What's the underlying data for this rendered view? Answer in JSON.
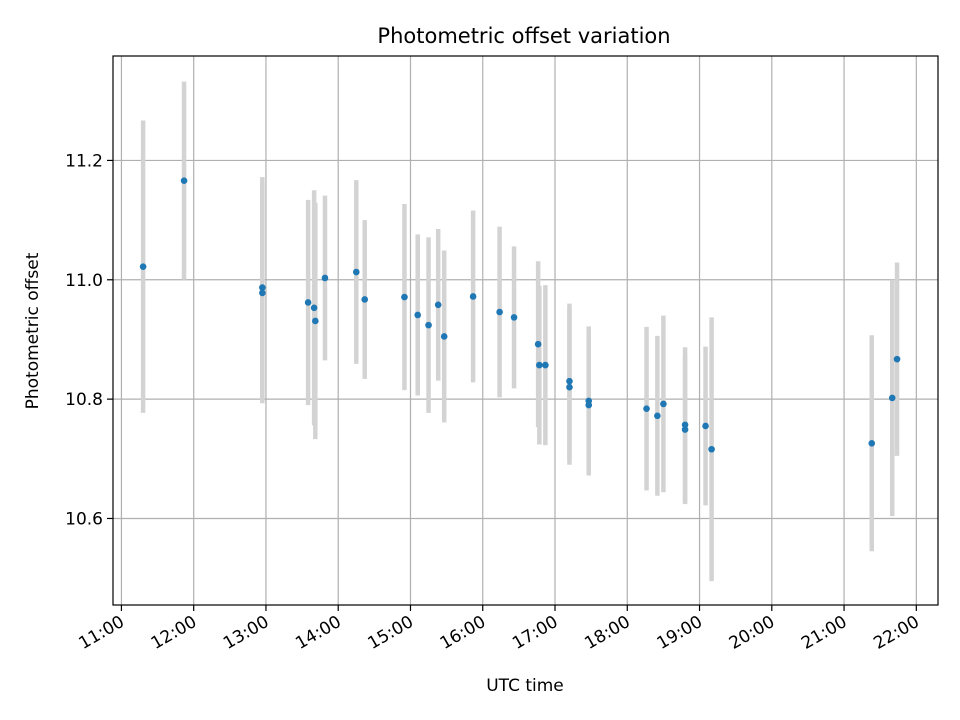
{
  "chart_data": {
    "type": "scatter",
    "title": "Photometric offset variation",
    "xlabel": "UTC time",
    "ylabel": "Photometric offset",
    "xlim": [
      "10:53",
      "22:18"
    ],
    "ylim": [
      10.455,
      11.375
    ],
    "x_ticks": [
      "11:00",
      "12:00",
      "13:00",
      "14:00",
      "15:00",
      "16:00",
      "17:00",
      "18:00",
      "19:00",
      "20:00",
      "21:00",
      "22:00"
    ],
    "y_ticks": [
      10.6,
      10.8,
      11.0,
      11.2
    ],
    "y_tick_labels": [
      "10.6",
      "10.8",
      "11.0",
      "11.2"
    ],
    "grid": true,
    "colors": {
      "point": "#1f77b4",
      "errorbar": "#d3d3d3",
      "grid": "#b0b0b0"
    },
    "points": [
      {
        "x": "11:18",
        "y": 11.022,
        "err": 0.245
      },
      {
        "x": "11:52",
        "y": 11.166,
        "err": 0.166
      },
      {
        "x": "12:57",
        "y": 10.987,
        "err": 0.185
      },
      {
        "x": "12:57",
        "y": 10.978,
        "err": 0.185
      },
      {
        "x": "13:35",
        "y": 10.962,
        "err": 0.172
      },
      {
        "x": "13:40",
        "y": 10.953,
        "err": 0.197
      },
      {
        "x": "13:41",
        "y": 10.931,
        "err": 0.198
      },
      {
        "x": "13:49",
        "y": 11.003,
        "err": 0.138
      },
      {
        "x": "14:15",
        "y": 11.013,
        "err": 0.154
      },
      {
        "x": "14:22",
        "y": 10.967,
        "err": 0.133
      },
      {
        "x": "14:55",
        "y": 10.971,
        "err": 0.156
      },
      {
        "x": "15:06",
        "y": 10.941,
        "err": 0.135
      },
      {
        "x": "15:15",
        "y": 10.924,
        "err": 0.147
      },
      {
        "x": "15:23",
        "y": 10.958,
        "err": 0.127
      },
      {
        "x": "15:28",
        "y": 10.905,
        "err": 0.144
      },
      {
        "x": "15:52",
        "y": 10.972,
        "err": 0.144
      },
      {
        "x": "16:14",
        "y": 10.946,
        "err": 0.143
      },
      {
        "x": "16:26",
        "y": 10.937,
        "err": 0.119
      },
      {
        "x": "16:46",
        "y": 10.892,
        "err": 0.139
      },
      {
        "x": "16:47",
        "y": 10.857,
        "err": 0.133
      },
      {
        "x": "16:52",
        "y": 10.857,
        "err": 0.134
      },
      {
        "x": "17:12",
        "y": 10.83,
        "err": 0.13
      },
      {
        "x": "17:12",
        "y": 10.82,
        "err": 0.13
      },
      {
        "x": "17:28",
        "y": 10.797,
        "err": 0.125
      },
      {
        "x": "17:28",
        "y": 10.79,
        "err": 0.117
      },
      {
        "x": "18:16",
        "y": 10.784,
        "err": 0.137
      },
      {
        "x": "18:25",
        "y": 10.772,
        "err": 0.134
      },
      {
        "x": "18:30",
        "y": 10.792,
        "err": 0.148
      },
      {
        "x": "18:48",
        "y": 10.757,
        "err": 0.13
      },
      {
        "x": "18:48",
        "y": 10.749,
        "err": 0.125
      },
      {
        "x": "19:05",
        "y": 10.755,
        "err": 0.133
      },
      {
        "x": "19:10",
        "y": 10.716,
        "err": 0.221
      },
      {
        "x": "21:23",
        "y": 10.726,
        "err": 0.181
      },
      {
        "x": "21:40",
        "y": 10.802,
        "err": 0.198
      },
      {
        "x": "21:44",
        "y": 10.867,
        "err": 0.162
      }
    ]
  }
}
